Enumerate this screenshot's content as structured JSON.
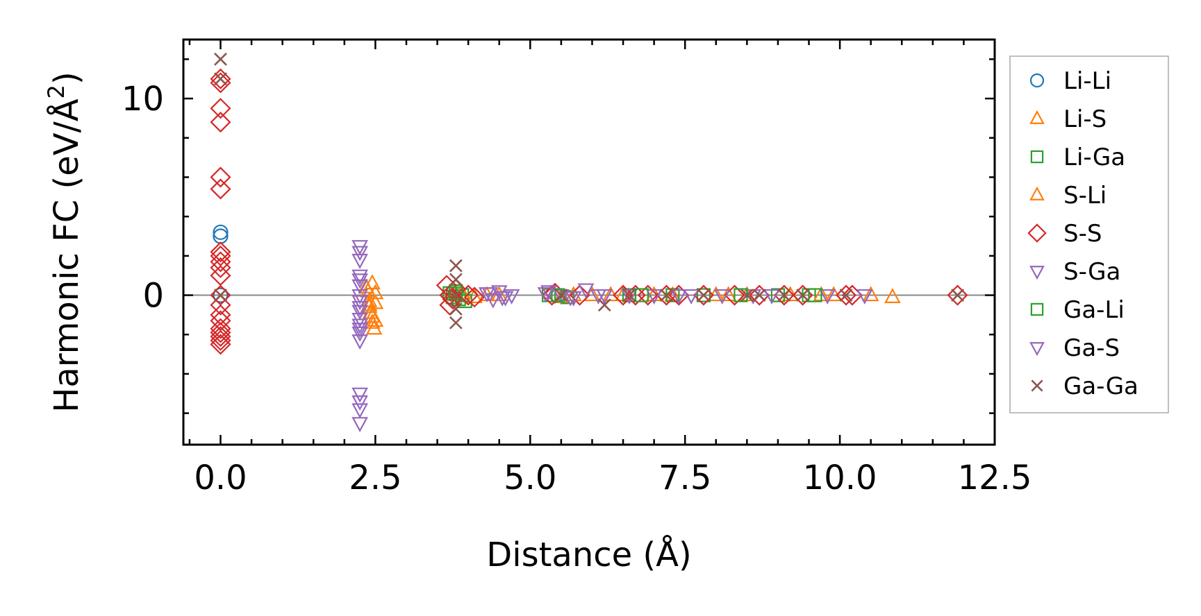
{
  "chart_data": {
    "type": "scatter",
    "title": "",
    "xlabel": "Distance (Å)",
    "ylabel_main": "Harmonic FC (eV/Å",
    "ylabel_sup": "2",
    "ylabel_close": ")",
    "xlim": [
      -0.6,
      12.5
    ],
    "ylim": [
      -7.6,
      13.0
    ],
    "xticks": [
      0.0,
      2.5,
      5.0,
      7.5,
      10.0,
      12.5
    ],
    "xtick_labels": [
      "0.0",
      "2.5",
      "5.0",
      "7.5",
      "10.0",
      "12.5"
    ],
    "yticks": [
      0,
      10
    ],
    "ytick_labels": [
      "0",
      "10"
    ],
    "x_minor_step": 0.5,
    "y_minor_step": 2,
    "zero_line": true,
    "grid": false,
    "legend_position": "right outside",
    "series": [
      {
        "name": "Li-Li",
        "marker": "circle",
        "color": "#1f77b4",
        "x": [
          0.0,
          0.0,
          0.0,
          0.0
        ],
        "y": [
          3.2,
          3.0,
          0.0,
          0.0
        ]
      },
      {
        "name": "Li-S",
        "marker": "triangle-up",
        "color": "#ff7f0e",
        "x": [
          2.35,
          2.38,
          2.4,
          2.4,
          2.42,
          2.45,
          2.45,
          2.48,
          2.5,
          2.5,
          3.8,
          4.1,
          4.3,
          5.5,
          6.0,
          6.5,
          7.3,
          8.0,
          8.5,
          9.2,
          9.9,
          10.5,
          10.85
        ],
        "y": [
          0.4,
          0.2,
          -0.3,
          -0.6,
          -0.9,
          -1.1,
          -1.4,
          -1.7,
          -0.4,
          0.1,
          0.0,
          -0.1,
          0.0,
          -0.1,
          0.0,
          0.0,
          0.0,
          0.0,
          0.0,
          0.0,
          0.0,
          0.0,
          -0.1
        ]
      },
      {
        "name": "Li-Ga",
        "marker": "square",
        "color": "#2ca02c",
        "x": [
          3.7,
          3.75,
          3.8,
          3.85,
          3.9,
          3.95,
          5.3,
          5.6,
          6.6,
          7.3,
          7.8,
          9.0,
          9.5
        ],
        "y": [
          0.1,
          -0.1,
          0.2,
          -0.2,
          0.0,
          -0.3,
          0.0,
          -0.1,
          0.0,
          0.0,
          0.0,
          0.0,
          0.0
        ]
      },
      {
        "name": "S-Li",
        "marker": "triangle-up",
        "color": "#ff7f0e",
        "x": [
          2.4,
          2.45,
          2.5,
          3.9,
          4.5,
          5.7,
          6.3,
          7.0,
          8.2,
          9.7
        ],
        "y": [
          -0.5,
          0.6,
          -1.3,
          0.1,
          0.0,
          0.0,
          0.0,
          0.0,
          0.0,
          0.0
        ]
      },
      {
        "name": "S-S",
        "marker": "diamond",
        "color": "#d62728",
        "x": [
          0.0,
          0.0,
          0.0,
          0.0,
          0.0,
          0.0,
          0.0,
          0.0,
          0.0,
          0.0,
          0.0,
          0.0,
          0.0,
          0.0,
          0.0,
          0.0,
          0.0,
          0.0,
          0.0,
          0.0,
          3.65,
          3.7,
          3.7,
          3.75,
          3.8,
          4.0,
          4.1,
          5.35,
          5.4,
          5.8,
          6.5,
          6.7,
          6.9,
          7.2,
          7.4,
          7.8,
          8.3,
          8.7,
          9.1,
          9.4,
          10.1,
          10.2,
          11.9
        ],
        "y": [
          11.0,
          10.8,
          9.5,
          8.8,
          6.0,
          5.4,
          2.2,
          2.0,
          1.7,
          1.4,
          1.0,
          0.0,
          -0.5,
          -1.0,
          -1.3,
          -1.7,
          -1.9,
          -2.1,
          -2.3,
          -2.5,
          0.5,
          -0.5,
          0.0,
          -0.2,
          0.3,
          0.0,
          -0.1,
          0.0,
          0.1,
          0.0,
          0.0,
          0.0,
          0.0,
          0.0,
          0.0,
          0.0,
          0.0,
          0.0,
          0.0,
          0.0,
          0.0,
          0.0,
          0.0
        ]
      },
      {
        "name": "S-Ga",
        "marker": "triangle-down",
        "color": "#9467bd",
        "x": [
          2.25,
          2.25,
          2.25,
          2.25,
          2.25,
          2.25,
          2.25,
          2.25,
          2.25,
          2.25,
          2.25,
          2.25,
          2.25,
          2.25,
          2.25,
          2.25,
          4.3,
          4.4,
          4.5,
          4.6,
          4.7,
          5.3,
          5.5,
          5.7,
          5.9,
          6.1,
          6.6,
          7.0,
          7.6,
          8.1,
          8.6,
          9.8,
          10.4
        ],
        "y": [
          2.5,
          2.2,
          1.8,
          1.0,
          0.5,
          0.0,
          -0.3,
          -0.8,
          -1.2,
          -1.5,
          -1.9,
          -2.3,
          -5.0,
          -5.4,
          -5.8,
          -6.5,
          0.1,
          -0.2,
          0.2,
          -0.1,
          0.0,
          0.2,
          0.0,
          -0.1,
          0.3,
          0.0,
          0.0,
          0.0,
          0.0,
          0.0,
          0.0,
          0.0,
          0.0
        ]
      },
      {
        "name": "Ga-Li",
        "marker": "square",
        "color": "#2ca02c",
        "x": [
          3.8,
          5.45,
          6.8,
          8.4,
          9.6
        ],
        "y": [
          0.1,
          0.0,
          0.0,
          0.0,
          0.0
        ]
      },
      {
        "name": "Ga-S",
        "marker": "triangle-down",
        "color": "#9467bd",
        "x": [
          2.25,
          2.25,
          2.25,
          4.35,
          4.55,
          5.25,
          5.65,
          6.2,
          7.4,
          8.9
        ],
        "y": [
          0.8,
          -0.6,
          -1.7,
          0.1,
          -0.1,
          0.1,
          -0.1,
          0.0,
          0.0,
          0.0
        ]
      },
      {
        "name": "Ga-Ga",
        "marker": "x",
        "color": "#8c564b",
        "x": [
          0.0,
          0.0,
          0.0,
          3.8,
          3.8,
          3.8,
          3.8,
          3.8,
          5.5,
          6.2,
          6.6,
          7.2,
          7.8,
          8.5,
          8.7,
          9.1,
          9.4,
          10.1,
          11.9
        ],
        "y": [
          12.0,
          11.0,
          0.0,
          1.5,
          0.8,
          0.0,
          -0.7,
          -1.4,
          0.0,
          -0.5,
          0.0,
          0.0,
          0.0,
          0.0,
          0.0,
          0.0,
          0.0,
          0.0,
          0.0
        ]
      }
    ]
  }
}
